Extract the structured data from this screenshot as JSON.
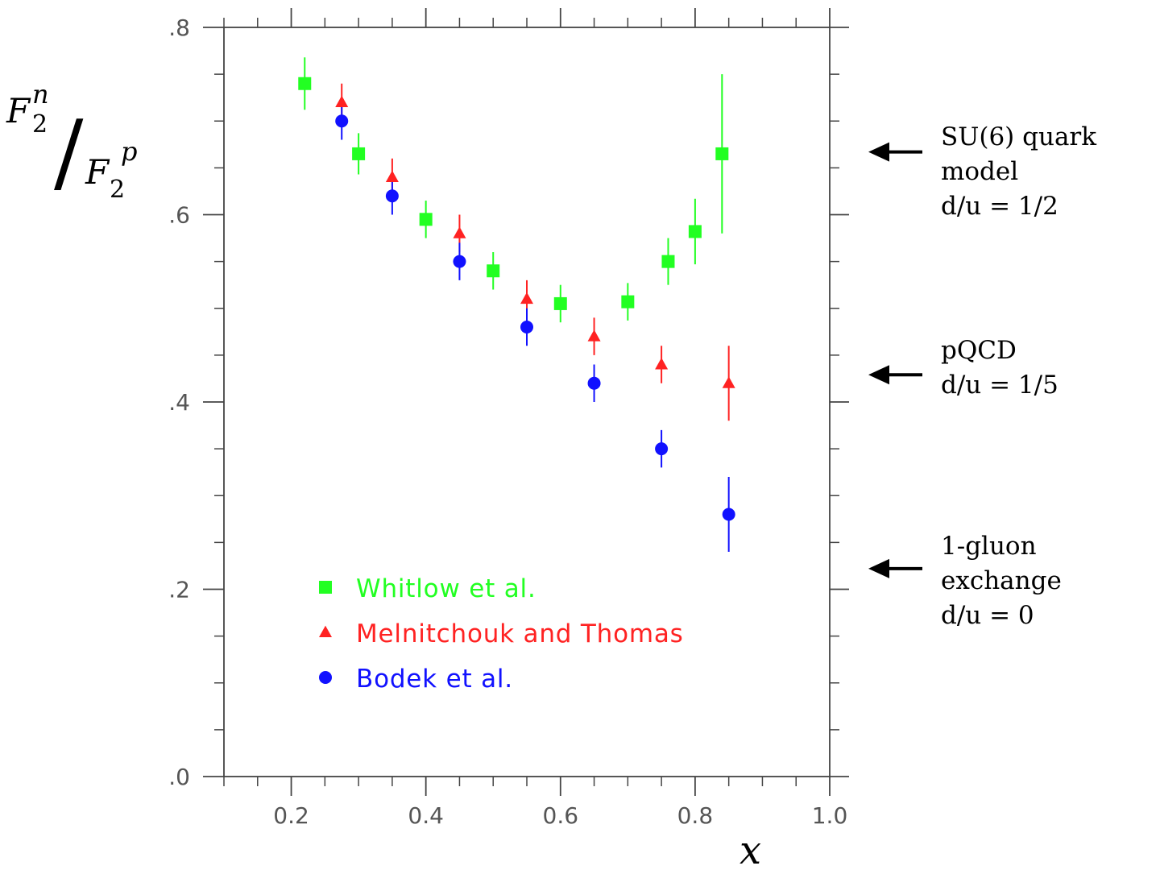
{
  "chart_data": {
    "type": "scatter",
    "title": "",
    "xlabel": "x",
    "ylabel": {
      "numerator_main": "F",
      "numerator_sub": "2",
      "numerator_sup": "n",
      "denominator_main": "F",
      "denominator_sub": "2",
      "denominator_sup": "p",
      "separator": "/"
    },
    "xlim": [
      0.1,
      1.0
    ],
    "ylim": [
      0.0,
      0.8
    ],
    "x_ticks": [
      0.2,
      0.4,
      0.6,
      0.8,
      1.0
    ],
    "x_tick_labels": [
      "0.2",
      "0.4",
      "0.6",
      "0.8",
      "1.0"
    ],
    "y_ticks": [
      0.0,
      0.2,
      0.4,
      0.6,
      0.8
    ],
    "y_tick_labels": [
      ".0",
      ".2",
      ".4",
      ".6",
      ".8"
    ],
    "grid": false,
    "legend_position": "lower-left",
    "series": [
      {
        "name": "Whitlow et al.",
        "marker": "square",
        "color": "#22ff22",
        "points": [
          {
            "x": 0.22,
            "y": 0.74,
            "err": 0.028
          },
          {
            "x": 0.3,
            "y": 0.665,
            "err": 0.022
          },
          {
            "x": 0.4,
            "y": 0.595,
            "err": 0.02
          },
          {
            "x": 0.5,
            "y": 0.54,
            "err": 0.02
          },
          {
            "x": 0.6,
            "y": 0.505,
            "err": 0.02
          },
          {
            "x": 0.7,
            "y": 0.507,
            "err": 0.02
          },
          {
            "x": 0.76,
            "y": 0.55,
            "err": 0.025
          },
          {
            "x": 0.8,
            "y": 0.582,
            "err": 0.035
          },
          {
            "x": 0.84,
            "y": 0.665,
            "err": 0.085
          }
        ]
      },
      {
        "name": "Melnitchouk and Thomas",
        "marker": "triangle",
        "color": "#ff2222",
        "points": [
          {
            "x": 0.275,
            "y": 0.72,
            "err": 0.02
          },
          {
            "x": 0.35,
            "y": 0.64,
            "err": 0.02
          },
          {
            "x": 0.45,
            "y": 0.58,
            "err": 0.02
          },
          {
            "x": 0.55,
            "y": 0.51,
            "err": 0.02
          },
          {
            "x": 0.65,
            "y": 0.47,
            "err": 0.02
          },
          {
            "x": 0.75,
            "y": 0.44,
            "err": 0.02
          },
          {
            "x": 0.85,
            "y": 0.42,
            "err": 0.04
          }
        ]
      },
      {
        "name": "Bodek et al.",
        "marker": "circle",
        "color": "#1111ff",
        "points": [
          {
            "x": 0.275,
            "y": 0.7,
            "err": 0.02
          },
          {
            "x": 0.35,
            "y": 0.62,
            "err": 0.02
          },
          {
            "x": 0.45,
            "y": 0.55,
            "err": 0.02
          },
          {
            "x": 0.55,
            "y": 0.48,
            "err": 0.02
          },
          {
            "x": 0.65,
            "y": 0.42,
            "err": 0.02
          },
          {
            "x": 0.75,
            "y": 0.35,
            "err": 0.02
          },
          {
            "x": 0.85,
            "y": 0.28,
            "err": 0.04
          }
        ]
      }
    ],
    "annotations": [
      {
        "lines": [
          "SU(6) quark",
          "model",
          "d/u = 1/2"
        ],
        "points_to": 0.667
      },
      {
        "lines": [
          "pQCD",
          "d/u = 1/5"
        ],
        "points_to": 0.429
      },
      {
        "lines": [
          "1-gluon",
          "exchange",
          "d/u = 0"
        ],
        "points_to": 0.222
      }
    ]
  }
}
